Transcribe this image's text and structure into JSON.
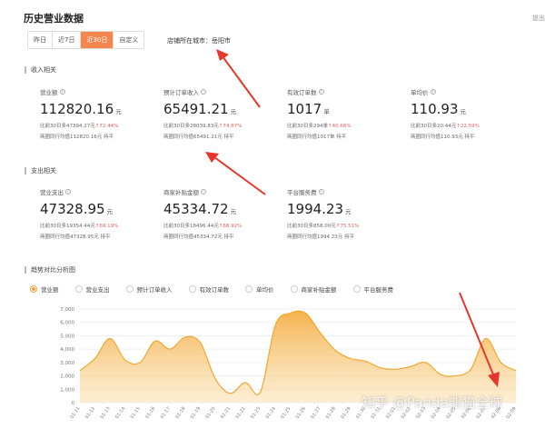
{
  "header": {
    "title": "历史营业数据",
    "top_right": "提出"
  },
  "range_tabs": [
    {
      "label": "昨日",
      "active": false
    },
    {
      "label": "近7日",
      "active": false
    },
    {
      "label": "近30日",
      "active": true
    },
    {
      "label": "自定义",
      "active": false
    }
  ],
  "city": "店铺所在城市：岳阳市",
  "income": {
    "title": "收入相关",
    "metrics": [
      {
        "label": "营业额",
        "value": "112820.16",
        "unit": "元",
        "compare": "比前30日多47394.27元",
        "pct": "↑72.44%",
        "avg": "商圈同行均值112820.16元 持平"
      },
      {
        "label": "预计订单收入",
        "value": "65491.21",
        "unit": "元",
        "compare": "比前30日多28039.83元",
        "pct": "↑74.87%",
        "avg": "商圈同行均值65491.21元 持平"
      },
      {
        "label": "有效订单数",
        "value": "1017",
        "unit": "单",
        "compare": "比前30日多294单",
        "pct": "↑40.66%",
        "avg": "商圈同行均值1017单 持平"
      },
      {
        "label": "单均价",
        "value": "110.93",
        "unit": "元",
        "compare": "比前30日多20.44元",
        "pct": "↑22.59%",
        "avg": "商圈同行均值110.93元 持平"
      }
    ]
  },
  "expense": {
    "title": "支出相关",
    "metrics": [
      {
        "label": "营业支出",
        "value": "47328.95",
        "unit": "元",
        "compare": "比前30日多19354.44元",
        "pct": "↑69.19%",
        "avg": "商圈同行均值47328.95元 持平"
      },
      {
        "label": "商家补贴金额",
        "value": "45334.72",
        "unit": "元",
        "compare": "比前30日多18496.44元",
        "pct": "↑68.92%",
        "avg": "商圈同行均值45334.72元 持平"
      },
      {
        "label": "平台服务费",
        "value": "1994.23",
        "unit": "元",
        "compare": "比前30日多858.00元",
        "pct": "↑75.51%",
        "avg": "商圈同行均值1994.23元 持平"
      }
    ]
  },
  "trend": {
    "title": "趋势对比分析图",
    "legend": [
      {
        "label": "营业额",
        "selected": true
      },
      {
        "label": "营业支出",
        "selected": false
      },
      {
        "label": "预计订单收入",
        "selected": false
      },
      {
        "label": "有效订单数",
        "selected": false
      },
      {
        "label": "单均价",
        "selected": false
      },
      {
        "label": "商家补贴金额",
        "selected": false
      },
      {
        "label": "平台服务费",
        "selected": false
      }
    ]
  },
  "colors": {
    "accent": "#f4854f",
    "series_line": "#f0a830",
    "arrow": "#e8362a",
    "up": "#e06060"
  },
  "chart_data": {
    "type": "area",
    "ylim": [
      0,
      7000
    ],
    "yticks": [
      0,
      1000,
      2000,
      3000,
      4000,
      5000,
      6000,
      7000
    ],
    "ytick_labels": [
      "0",
      "1,000",
      "2,000",
      "3,000",
      "4,000",
      "5,000",
      "6,000",
      "7,000"
    ],
    "categories": [
      "01-11",
      "01-12",
      "01-13",
      "01-14",
      "01-15",
      "01-16",
      "01-17",
      "01-18",
      "01-19",
      "01-20",
      "01-21",
      "01-22",
      "01-23",
      "01-24",
      "01-25",
      "01-26",
      "01-27",
      "01-28",
      "01-29",
      "01-30",
      "01-31",
      "02-01",
      "02-02",
      "02-03",
      "02-04",
      "02-05",
      "02-06",
      "02-07",
      "02-08",
      "02-09"
    ],
    "series": [
      {
        "name": "营业额",
        "values": [
          2400,
          3300,
          4800,
          3200,
          3000,
          4600,
          4000,
          4900,
          4500,
          1800,
          700,
          1500,
          800,
          5800,
          6700,
          6700,
          5200,
          3900,
          3300,
          3100,
          2600,
          2500,
          2700,
          3000,
          2100,
          2000,
          2500,
          4800,
          3000,
          2400
        ]
      }
    ]
  },
  "watermark": "知乎 @Panda熊猫全球"
}
